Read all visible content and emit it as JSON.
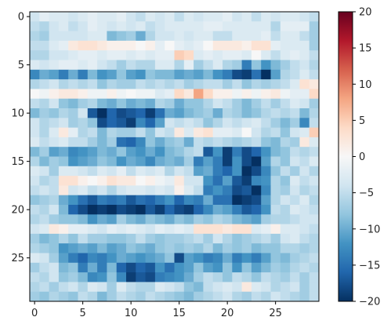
{
  "chart_data": {
    "type": "heatmap",
    "title": "",
    "xlabel": "",
    "ylabel": "",
    "x_ticks": [
      0,
      5,
      10,
      15,
      20,
      25
    ],
    "y_ticks": [
      0,
      5,
      10,
      15,
      20,
      25
    ],
    "x_tick_labels": [
      "0",
      "5",
      "10",
      "15",
      "20",
      "25"
    ],
    "y_tick_labels": [
      "0",
      "5",
      "10",
      "15",
      "20",
      "25"
    ],
    "colorbar_ticks": [
      20,
      15,
      10,
      5,
      0,
      -5,
      -10,
      -15,
      -20
    ],
    "colorbar_tick_labels": [
      "20",
      "15",
      "10",
      "5",
      "0",
      "−5",
      "−10",
      "−15",
      "−20"
    ],
    "colormap": "RdBu_r",
    "vmin": -20,
    "vmax": 20,
    "n_rows": 30,
    "n_cols": 30,
    "rows": [
      [
        -4,
        -2,
        -3,
        -3,
        -4,
        -3,
        -2,
        -3,
        -3,
        -2,
        -4,
        -5,
        -3,
        -4,
        -3,
        -5,
        -3,
        -4,
        -3,
        -3,
        -2,
        -4,
        -3,
        -5,
        -3,
        -4,
        -3,
        -3,
        -4,
        -5
      ],
      [
        -5,
        -6,
        -4,
        -3,
        -5,
        -4,
        -2,
        -3,
        -4,
        -3,
        -4,
        -3,
        -5,
        -4,
        -3,
        -3,
        -3,
        -3,
        -2,
        -2,
        -3,
        -3,
        -3,
        -3,
        -3,
        -6,
        -2,
        -2,
        -2,
        -7
      ],
      [
        -6,
        -7,
        -4,
        -4,
        -4,
        -4,
        -3,
        -3,
        -9,
        -8,
        -7,
        -10,
        -6,
        -4,
        -4,
        -3,
        -4,
        -3,
        -3,
        -5,
        -5,
        -3,
        -3,
        -3,
        -2,
        -5,
        -3,
        -3,
        -5,
        -7
      ],
      [
        -5,
        -5,
        -3,
        -2,
        2,
        3,
        3,
        2,
        1,
        1,
        1,
        0,
        1,
        -2,
        0,
        -2,
        -3,
        -2,
        0,
        2,
        2,
        2,
        1,
        3,
        3,
        -2,
        -3,
        -3,
        -3,
        -7
      ],
      [
        -6,
        -6,
        -4,
        -4,
        -3,
        -2,
        -2,
        -3,
        -2,
        -2,
        -3,
        -2,
        -3,
        -2,
        -2,
        5,
        4,
        -3,
        -2,
        -3,
        -2,
        -2,
        -3,
        0,
        -3,
        -5,
        -3,
        -2,
        -3,
        -5
      ],
      [
        -3,
        -4,
        -3,
        -2,
        -2,
        -3,
        -2,
        -4,
        -5,
        -7,
        -5,
        -6,
        -6,
        -3,
        -3,
        -6,
        -2,
        -7,
        -5,
        -3,
        -6,
        -7,
        -14,
        -8,
        -12,
        -9,
        -7,
        -5,
        -4,
        -6
      ],
      [
        -13,
        -10,
        -11,
        -14,
        -10,
        -14,
        -9,
        -12,
        -11,
        -8,
        -11,
        -12,
        -8,
        -9,
        -9,
        -11,
        -10,
        -11,
        -9,
        -12,
        -14,
        -18,
        -19,
        -15,
        -20,
        -11,
        -6,
        -5,
        -3,
        -5
      ],
      [
        -6,
        -5,
        -4,
        -6,
        -5,
        -6,
        -5,
        -8,
        -6,
        -7,
        -7,
        -5,
        -6,
        -5,
        -6,
        -5,
        -7,
        -6,
        -5,
        -5,
        -7,
        -5,
        -8,
        -6,
        -7,
        -6,
        -5,
        -3,
        3,
        2
      ],
      [
        0,
        -1,
        1,
        2,
        2,
        1,
        -1,
        -1,
        1,
        -1,
        0,
        -1,
        -1,
        -3,
        -2,
        4,
        2,
        8,
        4,
        1,
        1,
        -1,
        1,
        -1,
        1,
        2,
        -1,
        -2,
        -2,
        4
      ],
      [
        -5,
        -6,
        -4,
        -8,
        -9,
        -7,
        -6,
        -9,
        -10,
        -8,
        -10,
        -9,
        -10,
        -6,
        -7,
        -10,
        -8,
        -8,
        -6,
        -4,
        -5,
        -7,
        -9,
        -7,
        -5,
        -7,
        -5,
        -3,
        -4,
        -7
      ],
      [
        -9,
        -7,
        -8,
        -6,
        -7,
        -4,
        -17,
        -20,
        -16,
        -18,
        -17,
        -16,
        -19,
        -15,
        -10,
        -11,
        -9,
        -8,
        -7,
        -10,
        -6,
        -7,
        -9,
        -8,
        -6,
        -5,
        -6,
        -5,
        -9,
        -6
      ],
      [
        -4,
        -6,
        -5,
        -4,
        -7,
        -6,
        -8,
        -18,
        -16,
        -17,
        -19,
        -13,
        -16,
        -11,
        -4,
        -5,
        -4,
        -5,
        -8,
        -6,
        -4,
        -5,
        -4,
        -3,
        -5,
        -7,
        -9,
        -7,
        -13,
        -5
      ],
      [
        -4,
        -6,
        -3,
        2,
        -2,
        -6,
        -5,
        -9,
        -6,
        -7,
        -7,
        -5,
        -8,
        -4,
        -5,
        2,
        -3,
        2,
        3,
        -2,
        -2,
        -3,
        0,
        -4,
        -6,
        -5,
        -8,
        -4,
        -3,
        5
      ],
      [
        -3,
        -5,
        -4,
        -3,
        -5,
        -5,
        -7,
        -9,
        -7,
        -15,
        -16,
        -13,
        -8,
        -10,
        -8,
        -7,
        -10,
        -5,
        -6,
        -5,
        -6,
        -7,
        -6,
        -5,
        -8,
        -9,
        -6,
        -7,
        2,
        -3
      ],
      [
        -9,
        -7,
        -11,
        -10,
        -13,
        -12,
        -11,
        -9,
        -10,
        -8,
        -11,
        -12,
        -10,
        -12,
        -9,
        -8,
        -6,
        -5,
        -17,
        -12,
        -19,
        -14,
        -18,
        -16,
        -12,
        -9,
        -8,
        -5,
        -6,
        -5
      ],
      [
        -6,
        -9,
        -7,
        -8,
        -12,
        -11,
        -10,
        -8,
        -9,
        -12,
        -10,
        -11,
        -13,
        -10,
        -9,
        -10,
        -7,
        -14,
        -11,
        -14,
        -19,
        -12,
        -18,
        -20,
        -11,
        -6,
        -8,
        -4,
        -5,
        -3
      ],
      [
        -3,
        -4,
        -7,
        -3,
        -3,
        -4,
        -5,
        -3,
        -4,
        -2,
        -5,
        -3,
        -4,
        -3,
        -6,
        -4,
        -5,
        -11,
        -10,
        -14,
        -16,
        -12,
        -20,
        -18,
        -13,
        -8,
        -5,
        -7,
        -4,
        -6
      ],
      [
        -4,
        -6,
        -5,
        3,
        3,
        1,
        0,
        1,
        3,
        2,
        2,
        0,
        1,
        -1,
        -2,
        2,
        -4,
        -4,
        -12,
        -15,
        -11,
        -17,
        -19,
        -13,
        -12,
        -6,
        -8,
        -3,
        -5,
        -4
      ],
      [
        -5,
        -4,
        -5,
        2,
        -4,
        -3,
        -5,
        -4,
        -6,
        -4,
        -3,
        -3,
        -4,
        -3,
        -4,
        1,
        -3,
        -5,
        -14,
        -12,
        -14,
        -18,
        -17,
        -20,
        -13,
        -6,
        -7,
        -4,
        -6,
        -5
      ],
      [
        -8,
        -7,
        -6,
        -10,
        -12,
        -15,
        -17,
        -14,
        -15,
        -14,
        -17,
        -15,
        -16,
        -14,
        -12,
        -16,
        -13,
        -14,
        -10,
        -15,
        -15,
        -20,
        -19,
        -18,
        -11,
        -6,
        -4,
        -5,
        -3,
        -6
      ],
      [
        -5,
        -6,
        -4,
        -9,
        -16,
        -18,
        -20,
        -19,
        -20,
        -18,
        -19,
        -20,
        -17,
        -19,
        -16,
        -18,
        -19,
        -16,
        -13,
        -10,
        -11,
        -14,
        -17,
        -16,
        -12,
        -5,
        -6,
        -3,
        -4,
        -5
      ],
      [
        -6,
        -5,
        -7,
        -8,
        -8,
        -9,
        -12,
        -10,
        -11,
        -7,
        -9,
        -10,
        -8,
        -9,
        -10,
        -8,
        -9,
        -7,
        -8,
        -6,
        -7,
        -9,
        -10,
        -11,
        -7,
        -6,
        -6,
        -5,
        -4,
        -4
      ],
      [
        -4,
        -3,
        2,
        1,
        -2,
        -2,
        -3,
        -4,
        -2,
        -3,
        -2,
        -3,
        -4,
        -2,
        -3,
        -2,
        -3,
        3,
        3,
        3,
        2,
        3,
        3,
        -3,
        -2,
        1,
        -3,
        -3,
        -4,
        -5
      ],
      [
        -7,
        -9,
        -8,
        -6,
        -8,
        -5,
        -7,
        -7,
        -8,
        -8,
        -7,
        -5,
        -7,
        -8,
        -7,
        -7,
        -6,
        -5,
        -7,
        -4,
        -6,
        -8,
        -7,
        -6,
        -5,
        -7,
        -4,
        -3,
        -5,
        -6
      ],
      [
        -6,
        -7,
        -8,
        -12,
        -11,
        -10,
        -11,
        -9,
        -11,
        -10,
        -8,
        -9,
        -10,
        -8,
        -7,
        -8,
        -7,
        -8,
        -6,
        -9,
        -7,
        -8,
        -7,
        -9,
        -8,
        -8,
        -6,
        -6,
        -7,
        -6
      ],
      [
        -3,
        -4,
        -7,
        -11,
        -14,
        -16,
        -13,
        -14,
        -12,
        -10,
        -11,
        -12,
        -11,
        -10,
        -8,
        -18,
        -11,
        -12,
        -14,
        -13,
        -10,
        -14,
        -12,
        -14,
        -11,
        -8,
        -9,
        -7,
        -6,
        -5
      ],
      [
        -7,
        -5,
        -4,
        -9,
        -8,
        -14,
        -10,
        -14,
        -9,
        -16,
        -18,
        -16,
        -17,
        -12,
        -15,
        -12,
        -11,
        -8,
        -11,
        -12,
        -8,
        -12,
        -8,
        -11,
        -9,
        -7,
        -8,
        -6,
        -5,
        -6
      ],
      [
        -5,
        -6,
        -4,
        -8,
        -7,
        -9,
        -13,
        -12,
        -8,
        -13,
        -19,
        -17,
        -18,
        -14,
        -13,
        -12,
        -10,
        -7,
        -5,
        -6,
        -8,
        -5,
        -6,
        -8,
        -5,
        -6,
        -7,
        -5,
        -7,
        -5
      ],
      [
        -6,
        -5,
        -7,
        -5,
        -4,
        -6,
        -3,
        -4,
        -7,
        -3,
        -5,
        -6,
        -6,
        -3,
        -4,
        -5,
        -8,
        -9,
        -5,
        -4,
        -3,
        -4,
        2,
        -3,
        -4,
        -6,
        -5,
        -4,
        -7,
        -5
      ],
      [
        -7,
        -8,
        -6,
        -7,
        -8,
        -5,
        -6,
        -9,
        -7,
        -5,
        -6,
        -7,
        -5,
        -6,
        -7,
        -8,
        -9,
        -7,
        -6,
        -5,
        -4,
        -6,
        -7,
        -5,
        -6,
        -4,
        -5,
        -6,
        -7,
        -5
      ]
    ]
  }
}
